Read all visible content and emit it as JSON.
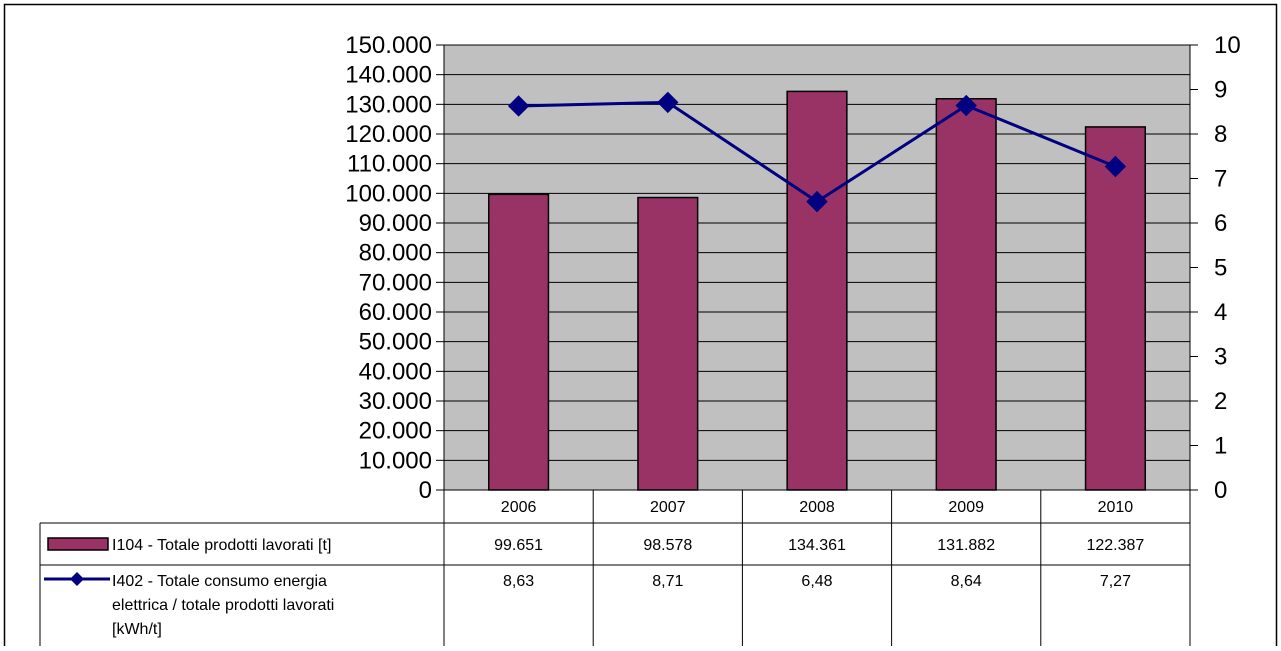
{
  "chart_data": {
    "type": "bar+line",
    "categories": [
      "2006",
      "2007",
      "2008",
      "2009",
      "2010"
    ],
    "series": [
      {
        "name": "I104 - Totale prodotti lavorati [t]",
        "kind": "bar",
        "axis": "left",
        "values": [
          99651,
          98578,
          134361,
          131882,
          122387
        ],
        "labels": [
          "99.651",
          "98.578",
          "134.361",
          "131.882",
          "122.387"
        ],
        "color": "#993366"
      },
      {
        "name_lines": [
          "I402 - Totale consumo energia",
          "elettrica / totale prodotti lavorati",
          "[kWh/t]"
        ],
        "kind": "line",
        "axis": "right",
        "values": [
          8.63,
          8.71,
          6.48,
          8.64,
          7.27
        ],
        "labels": [
          "8,63",
          "8,71",
          "6,48",
          "8,64",
          "7,27"
        ],
        "color": "#000080"
      }
    ],
    "y_left": {
      "range": [
        0,
        150000
      ],
      "ticks": [
        0,
        10000,
        20000,
        30000,
        40000,
        50000,
        60000,
        70000,
        80000,
        90000,
        100000,
        110000,
        120000,
        130000,
        140000,
        150000
      ],
      "tick_labels": [
        "0",
        "10.000",
        "20.000",
        "30.000",
        "40.000",
        "50.000",
        "60.000",
        "70.000",
        "80.000",
        "90.000",
        "100.000",
        "110.000",
        "120.000",
        "130.000",
        "140.000",
        "150.000"
      ]
    },
    "y_right": {
      "range": [
        0,
        10
      ],
      "ticks": [
        0,
        1,
        2,
        3,
        4,
        5,
        6,
        7,
        8,
        9,
        10
      ],
      "tick_labels": [
        "0",
        "1",
        "2",
        "3",
        "4",
        "5",
        "6",
        "7",
        "8",
        "9",
        "10"
      ]
    },
    "grid": true,
    "plot_background": "#c0c0c0",
    "legend": "data-table-below"
  }
}
